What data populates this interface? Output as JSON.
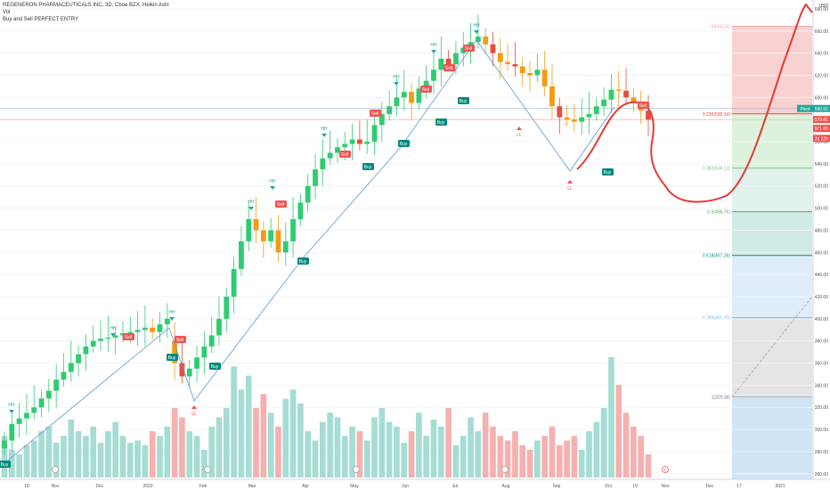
{
  "legend": {
    "symbol_line": "REGENERON PHARMACEUTICALS INC, 3D, Cboe BZX, Heikin Ashi",
    "indicator1": "Vol",
    "indicator2": "Buy and Sell PERFECT ENTRY"
  },
  "price_axis": {
    "currency": "USD",
    "ticks": [
      "680.00",
      "660.00",
      "640.00",
      "620.00",
      "600.00",
      "580.00",
      "560.00",
      "540.00",
      "520.00",
      "500.00",
      "480.00",
      "460.00",
      "440.00",
      "420.00",
      "400.00",
      "380.00",
      "360.00",
      "340.00",
      "320.00",
      "300.00",
      "280.00",
      "260.00"
    ],
    "last_price_tag": "590.01",
    "last_price_prefix": "Pivot",
    "price_tag2": "579.81",
    "price_tag3": "571.65",
    "countdown": "2d 22h"
  },
  "time_axis": {
    "ticks": [
      "18",
      "Nov",
      "Dec",
      "2020",
      "Feb",
      "Mar",
      "Apr",
      "May",
      "Jun",
      "Jul",
      "Aug",
      "Sep",
      "Oct",
      "19",
      "Nov",
      "Dec",
      "17",
      "2021"
    ]
  },
  "fib_levels": [
    {
      "label": "0(664.15)",
      "value": 664.15,
      "color": "#f4a3a3"
    },
    {
      "label": "0.236(585.14)",
      "value": 585.14,
      "color": "#f44336"
    },
    {
      "label": "0.382(536.13)",
      "value": 536.13,
      "color": "#81c784"
    },
    {
      "label": "0.5(496.76)",
      "value": 496.76,
      "color": "#4caf50"
    },
    {
      "label": "0.618(457.26)",
      "value": 457.26,
      "color": "#009688"
    },
    {
      "label": "0.786(401.02)",
      "value": 401.02,
      "color": "#64b5f6"
    },
    {
      "label": "1(329.38)",
      "value": 329.38,
      "color": "#787b86"
    }
  ],
  "markers": {
    "hh": "HH",
    "ll": "LL",
    "buy": "Buy",
    "sell": "Sell",
    "event_e": "E"
  },
  "chart_data": {
    "type": "candlestick",
    "title": "REGENERON PHARMACEUTICALS INC, 3D, Cboe BZX, Heikin Ashi",
    "ylim": [
      255,
      688
    ],
    "unit": "USD",
    "grid": true,
    "series": [
      {
        "name": "price_candles",
        "open": [
          283,
          290,
          305,
          310,
          315,
          320,
          328,
          335,
          345,
          352,
          360,
          368,
          375,
          380,
          382,
          383,
          385,
          387,
          388,
          390,
          392,
          388,
          395,
          380,
          360,
          348,
          355,
          365,
          375,
          385,
          400,
          420,
          445,
          470,
          490,
          480,
          470,
          480,
          460,
          470,
          490,
          505,
          520,
          535,
          545,
          550,
          555,
          558,
          562,
          558,
          560,
          575,
          585,
          592,
          600,
          605,
          595,
          608,
          615,
          625,
          635,
          630,
          640,
          645,
          650,
          655,
          648,
          640,
          632,
          630,
          628,
          622,
          620,
          625,
          610,
          592,
          582,
          580,
          578,
          582,
          585,
          592,
          598,
          607,
          606,
          600,
          595,
          588
        ],
        "close": [
          290,
          305,
          310,
          315,
          320,
          328,
          335,
          345,
          352,
          360,
          368,
          375,
          380,
          382,
          383,
          385,
          387,
          388,
          390,
          392,
          388,
          395,
          400,
          360,
          348,
          355,
          365,
          375,
          385,
          400,
          420,
          445,
          470,
          490,
          480,
          470,
          480,
          460,
          470,
          490,
          505,
          520,
          535,
          545,
          550,
          555,
          558,
          562,
          558,
          560,
          575,
          585,
          592,
          600,
          605,
          595,
          608,
          615,
          625,
          635,
          630,
          640,
          645,
          650,
          655,
          648,
          640,
          632,
          630,
          628,
          622,
          620,
          625,
          610,
          592,
          582,
          580,
          578,
          582,
          585,
          592,
          598,
          607,
          606,
          600,
          595,
          588,
          580
        ]
      },
      {
        "name": "volume",
        "values": [
          18,
          12,
          10,
          14,
          16,
          20,
          22,
          15,
          18,
          25,
          20,
          18,
          22,
          15,
          20,
          24,
          18,
          15,
          16,
          14,
          20,
          18,
          22,
          30,
          26,
          20,
          18,
          12,
          22,
          26,
          30,
          48,
          38,
          44,
          30,
          36,
          28,
          22,
          34,
          38,
          32,
          20,
          16,
          24,
          28,
          26,
          18,
          22,
          20,
          16,
          26,
          30,
          24,
          22,
          15,
          20,
          28,
          18,
          25,
          22,
          30,
          14,
          18,
          26,
          20,
          28,
          22,
          18,
          16,
          20,
          14,
          12,
          16,
          18,
          22,
          14,
          16,
          18,
          12,
          20,
          24,
          30,
          52,
          40,
          28,
          22,
          18,
          10
        ]
      }
    ],
    "annotations": [
      "HH",
      "LL",
      "Buy",
      "Sell",
      "Vol"
    ]
  }
}
